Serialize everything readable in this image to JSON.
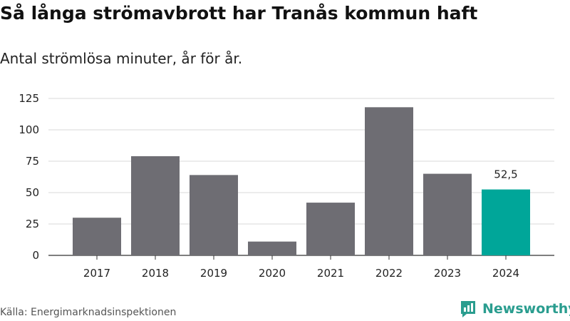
{
  "title": "Så långa strömavbrott har Tranås kommun haft",
  "subtitle": "Antal strömlösa minuter, år för år.",
  "source": "Källa: Energimarknadsinspektionen",
  "brand": {
    "name": "Newsworthy",
    "icon": "newsworthy-logo-icon",
    "color": "#2a9d8f"
  },
  "chart_data": {
    "type": "bar",
    "categories": [
      "2017",
      "2018",
      "2019",
      "2020",
      "2021",
      "2022",
      "2023",
      "2024"
    ],
    "values": [
      30,
      79,
      64,
      11,
      42,
      118,
      65,
      52.5
    ],
    "value_labels": [
      "",
      "",
      "",
      "",
      "",
      "",
      "",
      "52,5"
    ],
    "bar_colors": [
      "#6e6d73",
      "#6e6d73",
      "#6e6d73",
      "#6e6d73",
      "#6e6d73",
      "#6e6d73",
      "#6e6d73",
      "#00a699"
    ],
    "yticks": [
      "0",
      "25",
      "50",
      "75",
      "100",
      "125"
    ],
    "ylim": [
      0,
      125
    ],
    "grid": true,
    "xlabel": "",
    "ylabel": ""
  }
}
